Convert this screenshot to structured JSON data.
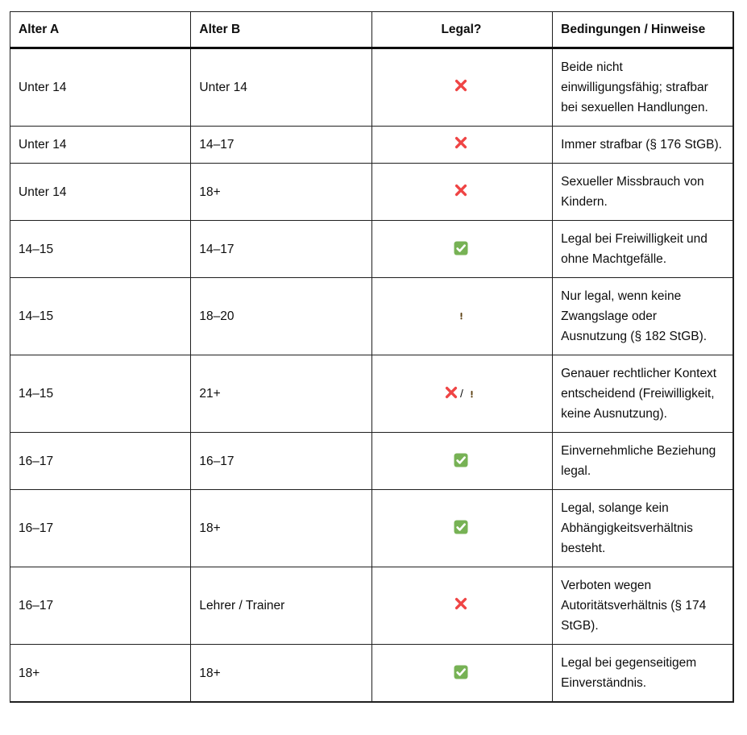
{
  "table": {
    "columns": [
      {
        "label": "Alter A",
        "align": "left"
      },
      {
        "label": "Alter B",
        "align": "left"
      },
      {
        "label": "Legal?",
        "align": "center"
      },
      {
        "label": "Bedingungen / Hinweise",
        "align": "left"
      }
    ],
    "rows": [
      {
        "alter_a": "Unter 14",
        "alter_b": "Unter 14",
        "legal": "cross",
        "hinweis": "Beide nicht einwilligungsfähig; strafbar bei sexuellen Handlungen."
      },
      {
        "alter_a": "Unter 14",
        "alter_b": "14–17",
        "legal": "cross",
        "hinweis": "Immer strafbar (§ 176 StGB)."
      },
      {
        "alter_a": "Unter 14",
        "alter_b": "18+",
        "legal": "cross",
        "hinweis": "Sexueller Missbrauch von Kindern."
      },
      {
        "alter_a": "14–15",
        "alter_b": "14–17",
        "legal": "check",
        "hinweis": "Legal bei Freiwilligkeit und ohne Machtgefälle."
      },
      {
        "alter_a": "14–15",
        "alter_b": "18–20",
        "legal": "warning",
        "hinweis": "Nur legal, wenn keine Zwangslage oder Ausnutzung (§ 182 StGB)."
      },
      {
        "alter_a": "14–15",
        "alter_b": "21+",
        "legal": "cross/warning",
        "hinweis": "Genauer rechtlicher Kontext entscheidend (Freiwilligkeit, keine Ausnutzung)."
      },
      {
        "alter_a": "16–17",
        "alter_b": "16–17",
        "legal": "check",
        "hinweis": "Einvernehmliche Beziehung legal."
      },
      {
        "alter_a": "16–17",
        "alter_b": "18+",
        "legal": "check",
        "hinweis": "Legal, solange kein Abhängigkeitsverhältnis besteht."
      },
      {
        "alter_a": "16–17",
        "alter_b": "Lehrer / Trainer",
        "legal": "cross",
        "hinweis": "Verboten wegen Autoritätsverhältnis (§ 174 StGB)."
      },
      {
        "alter_a": "18+",
        "alter_b": "18+",
        "legal": "check",
        "hinweis": "Legal bei gegenseitigem Einverständnis."
      }
    ]
  },
  "icons": {
    "cross": {
      "semantic": "cross-mark-icon",
      "color": "#ef4444"
    },
    "check": {
      "semantic": "check-mark-icon",
      "box_color": "#77b255",
      "check_color": "#ffffff"
    },
    "warning": {
      "semantic": "warning-icon",
      "top_color": "#ffd23e",
      "bottom_color": "#f5a306",
      "mark_color": "#5c4012"
    }
  },
  "legal_separator": "/",
  "colors": {
    "text": "#0d0d0d",
    "border": "#1f1f1f",
    "background": "#ffffff"
  }
}
